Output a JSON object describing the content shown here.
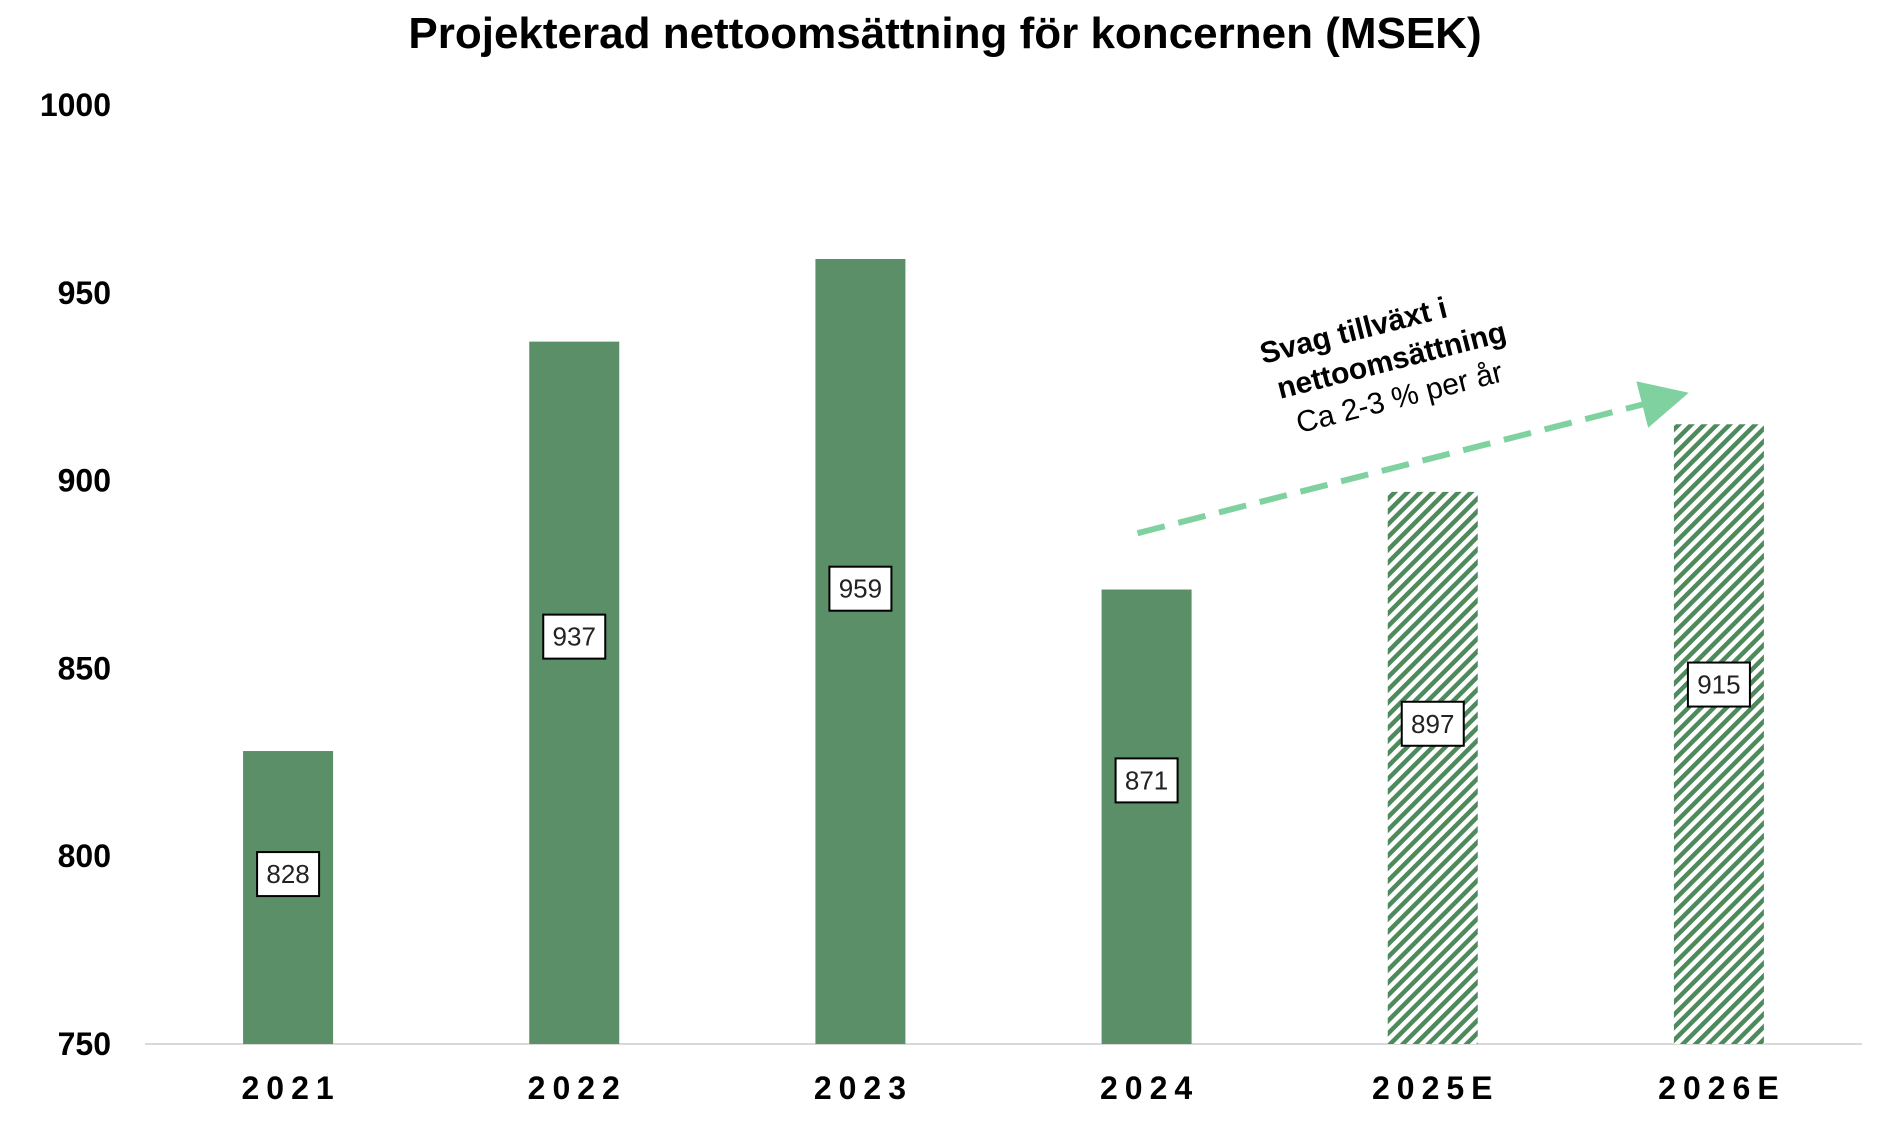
{
  "chart_data": {
    "type": "bar",
    "title": "Projekterad nettoomsättning för koncernen (MSEK)",
    "xlabel": "",
    "ylabel": "",
    "categories": [
      "2021",
      "2022",
      "2023",
      "2024",
      "2025E",
      "2026E"
    ],
    "values": [
      828,
      937,
      959,
      871,
      897,
      915
    ],
    "data_labels": [
      "828",
      "937",
      "959",
      "871",
      "897",
      "915"
    ],
    "estimated": [
      false,
      false,
      false,
      false,
      true,
      true
    ],
    "ylim": [
      750,
      1000
    ],
    "yticks": [
      750,
      800,
      850,
      900,
      950,
      1000
    ],
    "ytick_labels": [
      "750",
      "800",
      "850",
      "900",
      "950",
      "1000"
    ],
    "grid": false,
    "legend": "none",
    "annotation": {
      "line1": "Svag tillväxt i",
      "line2": "nettoomsättning",
      "line3": "Ca 2-3  % per år",
      "arrow_style": "dashed",
      "arrow_from": {
        "category": "2024",
        "value": 886
      },
      "arrow_to": {
        "category": "2026E",
        "value": 923
      }
    },
    "colors": {
      "bar": "#5b8f68",
      "hatch": "#4f8a5d",
      "arrow": "#7fd1a0",
      "axis": "#d9d9d9"
    }
  }
}
